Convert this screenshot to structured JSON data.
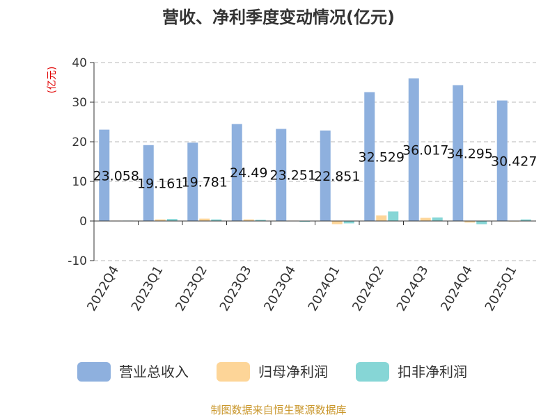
{
  "chart_data": {
    "type": "bar",
    "title": "营收、净利季度变动情况(亿元)",
    "ylabel": "(亿元)",
    "xlabel": "",
    "ylim": [
      -10,
      40
    ],
    "yticks": [
      -10,
      0,
      10,
      20,
      30,
      40
    ],
    "grid": true,
    "legend_position": "bottom",
    "categories": [
      "2022Q4",
      "2023Q1",
      "2023Q2",
      "2023Q3",
      "2023Q4",
      "2024Q1",
      "2024Q2",
      "2024Q3",
      "2024Q4",
      "2025Q1"
    ],
    "series": [
      {
        "name": "营业总收入",
        "color": "#8eb0de",
        "values": [
          23.058,
          19.161,
          19.781,
          24.49,
          23.251,
          22.851,
          32.529,
          36.017,
          34.295,
          30.427
        ],
        "labels": [
          "23.058",
          "19.161",
          "19.781",
          "24.49",
          "23.251",
          "22.851",
          "32.529",
          "36.017",
          "34.295",
          "30.427"
        ]
      },
      {
        "name": "归母净利润",
        "color": "#fdd598",
        "values": [
          0.1,
          0.4,
          0.6,
          0.4,
          0.1,
          -0.8,
          1.4,
          0.8,
          -0.4,
          0.05
        ]
      },
      {
        "name": "扣非净利润",
        "color": "#86d6d6",
        "values": [
          0.1,
          0.5,
          0.4,
          0.3,
          -0.2,
          -0.6,
          2.4,
          0.9,
          -0.8,
          0.4
        ]
      }
    ]
  },
  "source": "制图数据来自恒生聚源数据库"
}
